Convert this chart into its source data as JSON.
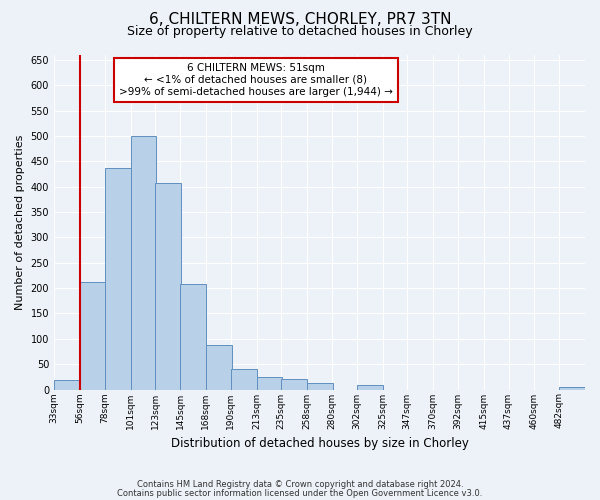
{
  "title_line1": "6, CHILTERN MEWS, CHORLEY, PR7 3TN",
  "title_line2": "Size of property relative to detached houses in Chorley",
  "xlabel": "Distribution of detached houses by size in Chorley",
  "ylabel": "Number of detached properties",
  "footer_line1": "Contains HM Land Registry data © Crown copyright and database right 2024.",
  "footer_line2": "Contains public sector information licensed under the Open Government Licence v3.0.",
  "annotation_line1": "6 CHILTERN MEWS: 51sqm",
  "annotation_line2": "← <1% of detached houses are smaller (8)",
  "annotation_line3": ">99% of semi-detached houses are larger (1,944) →",
  "bar_color": "#b8d0e8",
  "bar_edge_color": "#6090c0",
  "property_line_x": 56,
  "categories": [
    33,
    56,
    78,
    101,
    123,
    145,
    168,
    190,
    213,
    235,
    258,
    280,
    302,
    325,
    347,
    370,
    392,
    415,
    437,
    460,
    482
  ],
  "bin_width": 23,
  "values": [
    18,
    213,
    437,
    500,
    408,
    208,
    87,
    40,
    25,
    20,
    13,
    0,
    8,
    0,
    0,
    0,
    0,
    0,
    0,
    0,
    5
  ],
  "ylim": [
    0,
    660
  ],
  "yticks": [
    0,
    50,
    100,
    150,
    200,
    250,
    300,
    350,
    400,
    450,
    500,
    550,
    600,
    650
  ],
  "background_color": "#edf2f8",
  "plot_bg_color": "#edf2f8",
  "annotation_box_facecolor": "#ffffff",
  "annotation_box_edgecolor": "#cc0000",
  "red_line_color": "#cc0000",
  "grid_color": "#ffffff",
  "title1_fontsize": 11,
  "title2_fontsize": 9,
  "ylabel_fontsize": 8,
  "xlabel_fontsize": 8.5,
  "tick_fontsize": 7,
  "xtick_fontsize": 6.5,
  "footer_fontsize": 6,
  "annotation_fontsize": 7.5
}
